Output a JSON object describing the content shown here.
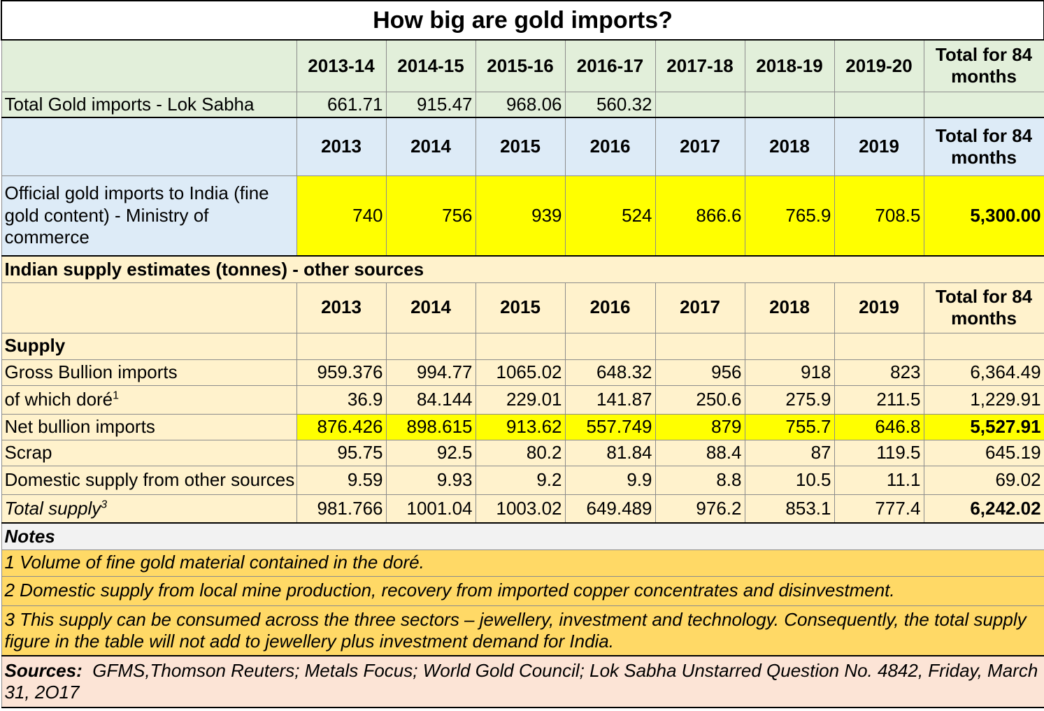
{
  "title": "How big are gold imports?",
  "fy_columns": [
    "2013-14",
    "2014-15",
    "2015-16",
    "2016-17",
    "2017-18",
    "2018-19",
    "2019-20"
  ],
  "year_columns": [
    "2013",
    "2014",
    "2015",
    "2016",
    "2017",
    "2018",
    "2019"
  ],
  "total_header": "Total for 84 months",
  "lok_sabha": {
    "label": "Total Gold imports - Lok Sabha",
    "values": [
      "661.71",
      "915.47",
      "968.06",
      "560.32",
      "",
      "",
      "",
      ""
    ]
  },
  "official": {
    "label": "Official gold imports to India (fine gold content) - Ministry of commerce",
    "values": [
      "740",
      "756",
      "939",
      "524",
      "866.6",
      "765.9",
      "708.5",
      "5,300.00"
    ]
  },
  "section_title": "Indian supply estimates (tonnes) - other sources",
  "supply_label": "Supply",
  "rows": [
    {
      "label": "Gross Bullion imports",
      "sup": "",
      "values": [
        "959.376",
        "994.77",
        "1065.02",
        "648.32",
        "956",
        "918",
        "823",
        "6,364.49"
      ]
    },
    {
      "label": "of which doré",
      "sup": "1",
      "values": [
        "36.9",
        "84.144",
        "229.01",
        "141.87",
        "250.6",
        "275.9",
        "211.5",
        "1,229.91"
      ]
    },
    {
      "label": "Net bullion imports",
      "sup": "",
      "values": [
        "876.426",
        "898.615",
        "913.62",
        "557.749",
        "879",
        "755.7",
        "646.8",
        "5,527.91"
      ]
    },
    {
      "label": "Scrap",
      "sup": "",
      "values": [
        "95.75",
        "92.5",
        "80.2",
        "81.84",
        "88.4",
        "87",
        "119.5",
        "645.19"
      ]
    },
    {
      "label": "Domestic supply from other sources",
      "sup": "",
      "values": [
        "9.59",
        "9.93",
        "9.2",
        "9.9",
        "8.8",
        "10.5",
        "11.1",
        "69.02"
      ]
    },
    {
      "label": "Total supply",
      "sup": "3",
      "values": [
        "981.766",
        "1001.04",
        "1003.02",
        "649.489",
        "976.2",
        "853.1",
        "777.4",
        "6,242.02"
      ]
    }
  ],
  "notes": {
    "heading": "Notes",
    "items": [
      "1 Volume of fine gold material contained in the doré.",
      "2 Domestic supply from local mine production, recovery from imported copper concentrates and disinvestment.",
      "3 This supply can be consumed across the three sectors – jewellery, investment and technology. Consequently, the total supply figure in the table will not add to jewellery plus investment demand for India."
    ]
  },
  "sources": {
    "label": "Sources:",
    "text": "GFMS,Thomson Reuters; Metals Focus; World Gold Council; Lok Sabha Unstarred Question No.  4842, Friday, March 31, 2O17"
  },
  "colors": {
    "green_header": "#e2efda",
    "blue_header": "#ddebf7",
    "peach": "#fff2cc",
    "yellow_highlight": "#ffff00",
    "orange_notes": "#ffd966",
    "sources_bg": "#fce4d6"
  },
  "chart_data": {
    "type": "table",
    "title": "How big are gold imports?",
    "tables": [
      {
        "columns": [
          "2013-14",
          "2014-15",
          "2015-16",
          "2016-17",
          "2017-18",
          "2018-19",
          "2019-20",
          "Total for 84 months"
        ],
        "rows": [
          {
            "name": "Total Gold imports - Lok Sabha",
            "values": [
              661.71,
              915.47,
              968.06,
              560.32,
              null,
              null,
              null,
              null
            ]
          }
        ]
      },
      {
        "columns": [
          "2013",
          "2014",
          "2015",
          "2016",
          "2017",
          "2018",
          "2019",
          "Total for 84 months"
        ],
        "rows": [
          {
            "name": "Official gold imports to India (fine gold content) - Ministry of commerce",
            "values": [
              740,
              756,
              939,
              524,
              866.6,
              765.9,
              708.5,
              5300.0
            ]
          }
        ]
      },
      {
        "title": "Indian supply estimates (tonnes) - other sources",
        "columns": [
          "2013",
          "2014",
          "2015",
          "2016",
          "2017",
          "2018",
          "2019",
          "Total for 84 months"
        ],
        "rows": [
          {
            "name": "Gross Bullion imports",
            "values": [
              959.376,
              994.77,
              1065.02,
              648.32,
              956,
              918,
              823,
              6364.49
            ]
          },
          {
            "name": "of which doré",
            "values": [
              36.9,
              84.144,
              229.01,
              141.87,
              250.6,
              275.9,
              211.5,
              1229.91
            ]
          },
          {
            "name": "Net bullion imports",
            "values": [
              876.426,
              898.615,
              913.62,
              557.749,
              879,
              755.7,
              646.8,
              5527.91
            ]
          },
          {
            "name": "Scrap",
            "values": [
              95.75,
              92.5,
              80.2,
              81.84,
              88.4,
              87,
              119.5,
              645.19
            ]
          },
          {
            "name": "Domestic supply from other sources",
            "values": [
              9.59,
              9.93,
              9.2,
              9.9,
              8.8,
              10.5,
              11.1,
              69.02
            ]
          },
          {
            "name": "Total supply",
            "values": [
              981.766,
              1001.04,
              1003.02,
              649.489,
              976.2,
              853.1,
              777.4,
              6242.02
            ]
          }
        ]
      }
    ]
  }
}
